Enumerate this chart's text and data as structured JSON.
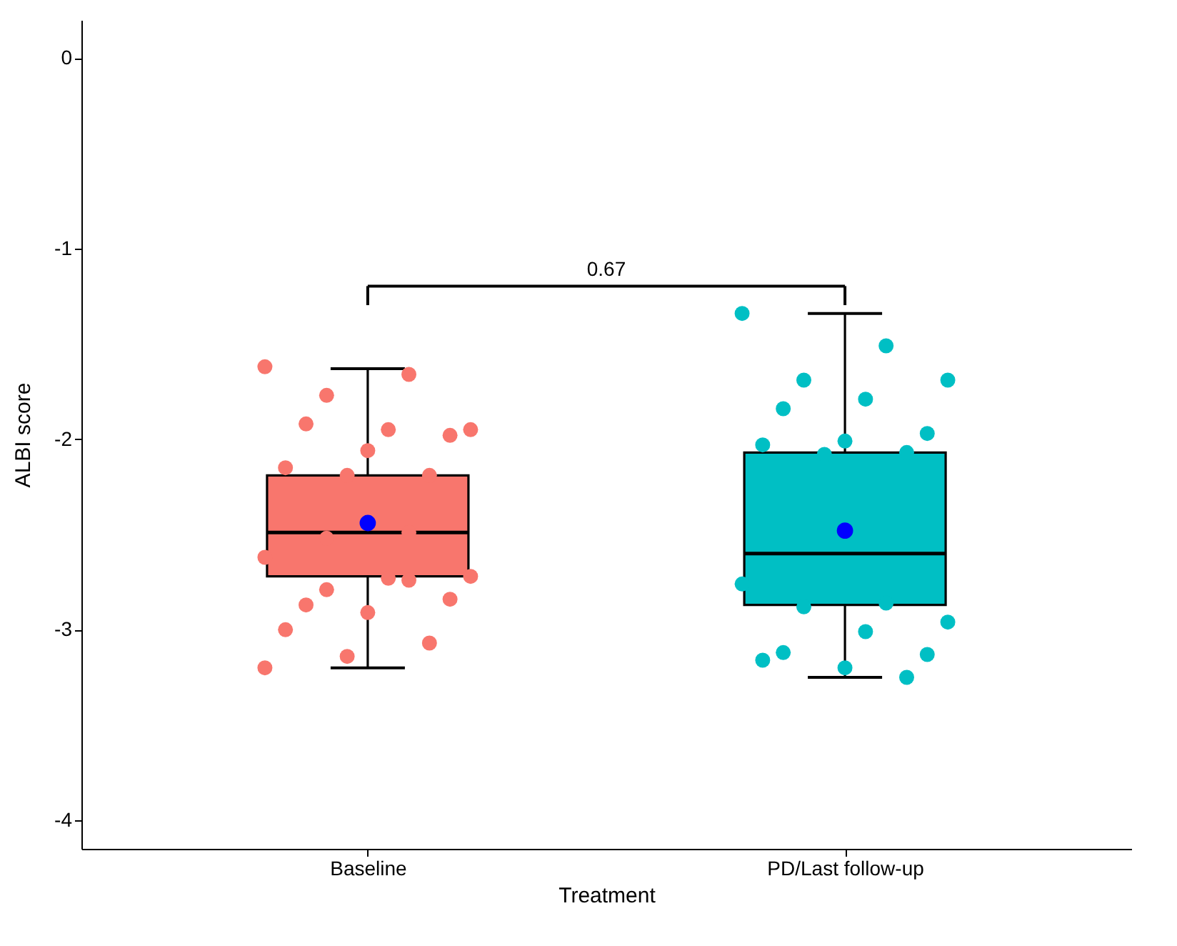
{
  "chart_data": {
    "type": "box",
    "xlabel": "Treatment",
    "ylabel": "ALBI score",
    "categories": [
      "Baseline",
      "PD/Last follow-up"
    ],
    "colors": [
      "#f8766d",
      "#00bfc4"
    ],
    "boxes": [
      {
        "low": -3.2,
        "q1": -2.72,
        "median": -2.49,
        "q3": -2.19,
        "high": -1.63,
        "mean": -2.44
      },
      {
        "low": -3.25,
        "q1": -2.87,
        "median": -2.6,
        "q3": -2.07,
        "high": -1.34,
        "mean": -2.48
      }
    ],
    "series": [
      {
        "type": "scatter",
        "color": "#f8766d",
        "x": [
          "Baseline",
          "Baseline",
          "Baseline",
          "Baseline",
          "Baseline",
          "Baseline",
          "Baseline",
          "Baseline",
          "Baseline",
          "Baseline",
          "Baseline",
          "Baseline",
          "Baseline",
          "Baseline",
          "Baseline",
          "Baseline",
          "Baseline",
          "Baseline",
          "Baseline",
          "Baseline",
          "Baseline",
          "Baseline",
          "Baseline",
          "Baseline",
          "Baseline"
        ],
        "values": [
          -1.62,
          -1.66,
          -1.77,
          -1.95,
          -1.95,
          -1.92,
          -1.98,
          -2.06,
          -2.15,
          -2.19,
          -2.19,
          -2.62,
          -2.74,
          -2.79,
          -2.72,
          -2.73,
          -2.87,
          -2.84,
          -2.91,
          -3.0,
          -3.07,
          -3.14,
          -3.2,
          -2.49,
          -2.52
        ]
      },
      {
        "type": "scatter",
        "color": "#00bfc4",
        "x": [
          "PD/Last follow-up",
          "PD/Last follow-up",
          "PD/Last follow-up",
          "PD/Last follow-up",
          "PD/Last follow-up",
          "PD/Last follow-up",
          "PD/Last follow-up",
          "PD/Last follow-up",
          "PD/Last follow-up",
          "PD/Last follow-up",
          "PD/Last follow-up",
          "PD/Last follow-up",
          "PD/Last follow-up",
          "PD/Last follow-up",
          "PD/Last follow-up",
          "PD/Last follow-up",
          "PD/Last follow-up",
          "PD/Last follow-up",
          "PD/Last follow-up",
          "PD/Last follow-up",
          "PD/Last follow-up"
        ],
        "values": [
          -1.34,
          -1.51,
          -1.69,
          -1.69,
          -1.79,
          -1.84,
          -1.97,
          -2.01,
          -2.03,
          -2.07,
          -2.08,
          -2.76,
          -2.86,
          -2.88,
          -2.96,
          -3.01,
          -3.12,
          -3.13,
          -3.2,
          -3.16,
          -3.25
        ]
      }
    ],
    "marker": "circle",
    "ylim": [
      -4.15,
      0.2
    ],
    "yticks": [
      0,
      -1,
      -2,
      -3,
      -4
    ],
    "annotations": [
      "0.67"
    ]
  }
}
